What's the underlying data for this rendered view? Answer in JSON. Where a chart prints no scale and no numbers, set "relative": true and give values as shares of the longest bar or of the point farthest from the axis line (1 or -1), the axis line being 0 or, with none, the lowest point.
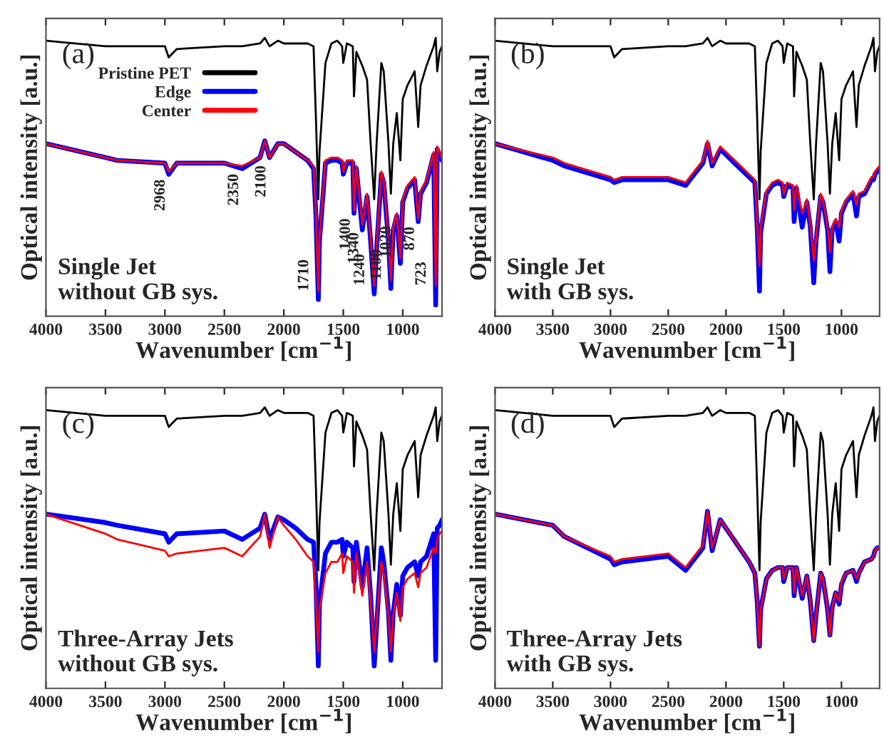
{
  "chart_data": [
    {
      "type": "line",
      "relative": true,
      "xlabel": "Wavenumber [cm$^{−1}$]",
      "ylabel": "Optical intensity [a.u.]",
      "xlim": [
        4000,
        670
      ],
      "xticks": [
        4000,
        3500,
        3000,
        2500,
        2000,
        1500,
        1000
      ],
      "legend": "top",
      "annotations": [
        "(a)",
        "Single Jet\nwithout GB sys.",
        {
          "text": "2968",
          "x": 2968,
          "y": 0.52
        },
        {
          "text": "2350",
          "x": 2350,
          "y": 0.54
        },
        {
          "text": "2100",
          "x": 2120,
          "y": 0.57
        },
        {
          "text": "1710",
          "x": 1710,
          "y": 0.09
        },
        {
          "text": "1400",
          "x": 1410,
          "y": 0.38
        },
        {
          "text": "1340",
          "x": 1340,
          "y": 0.33
        },
        {
          "text": "1240",
          "x": 1240,
          "y": 0.11
        },
        {
          "text": "1100",
          "x": 1100,
          "y": 0.13
        },
        {
          "text": "1020",
          "x": 1020,
          "y": 0.21
        },
        {
          "text": "870",
          "x": 870,
          "y": 0.35
        },
        {
          "text": "723",
          "x": 723,
          "y": 0.11
        }
      ],
      "x": [
        4000,
        3500,
        3400,
        3000,
        2968,
        2900,
        2500,
        2350,
        2200,
        2160,
        2120,
        2050,
        2000,
        1900,
        1800,
        1750,
        1730,
        1710,
        1700,
        1650,
        1600,
        1550,
        1510,
        1500,
        1470,
        1420,
        1410,
        1390,
        1340,
        1300,
        1270,
        1240,
        1220,
        1180,
        1160,
        1120,
        1100,
        1080,
        1050,
        1020,
        1000,
        960,
        900,
        870,
        850,
        800,
        740,
        723,
        710,
        690,
        670
      ],
      "series": [
        {
          "name": "Pristine PET",
          "color": "#000000",
          "values": [
            0.99,
            0.97,
            0.97,
            0.97,
            0.93,
            0.96,
            0.97,
            0.97,
            0.98,
            1.0,
            0.97,
            0.99,
            0.98,
            0.98,
            0.98,
            0.97,
            0.71,
            0.42,
            0.59,
            0.91,
            0.98,
            0.99,
            0.97,
            0.91,
            0.98,
            0.97,
            0.79,
            0.95,
            0.9,
            0.85,
            0.62,
            0.42,
            0.62,
            0.91,
            0.88,
            0.62,
            0.44,
            0.62,
            0.73,
            0.56,
            0.78,
            0.83,
            0.88,
            0.68,
            0.83,
            0.9,
            0.97,
            1.0,
            0.88,
            0.95,
            0.97
          ]
        },
        {
          "name": "Edge",
          "color": "#0000ff",
          "values": [
            0.62,
            0.57,
            0.56,
            0.55,
            0.51,
            0.55,
            0.55,
            0.53,
            0.57,
            0.63,
            0.57,
            0.62,
            0.62,
            0.59,
            0.56,
            0.53,
            0.36,
            0.06,
            0.27,
            0.55,
            0.56,
            0.56,
            0.55,
            0.51,
            0.55,
            0.55,
            0.37,
            0.53,
            0.31,
            0.43,
            0.27,
            0.08,
            0.24,
            0.51,
            0.48,
            0.27,
            0.1,
            0.31,
            0.36,
            0.19,
            0.41,
            0.46,
            0.49,
            0.34,
            0.44,
            0.48,
            0.58,
            0.04,
            0.6,
            0.58,
            0.56
          ]
        },
        {
          "name": "Center",
          "color": "#ff0000",
          "values": [
            0.62,
            0.57,
            0.56,
            0.55,
            0.52,
            0.55,
            0.55,
            0.54,
            0.57,
            0.63,
            0.57,
            0.62,
            0.62,
            0.59,
            0.56,
            0.54,
            0.37,
            0.09,
            0.28,
            0.56,
            0.57,
            0.57,
            0.56,
            0.52,
            0.56,
            0.56,
            0.38,
            0.54,
            0.33,
            0.44,
            0.28,
            0.11,
            0.25,
            0.52,
            0.49,
            0.28,
            0.13,
            0.32,
            0.37,
            0.21,
            0.42,
            0.47,
            0.5,
            0.35,
            0.45,
            0.49,
            0.59,
            0.11,
            0.61,
            0.59,
            0.57
          ]
        }
      ]
    },
    {
      "type": "line",
      "relative": true,
      "xlabel": "Wavenumber [cm$^{−1}$]",
      "ylabel": "Optical intensity [a.u.]",
      "xlim": [
        4000,
        670
      ],
      "xticks": [
        4000,
        3500,
        3000,
        2500,
        2000,
        1500,
        1000
      ],
      "annotations": [
        "(b)",
        "Single Jet\nwith GB sys."
      ],
      "x": [
        4000,
        3500,
        3400,
        3000,
        2968,
        2900,
        2500,
        2350,
        2200,
        2160,
        2120,
        2050,
        2000,
        1900,
        1800,
        1750,
        1730,
        1710,
        1700,
        1650,
        1600,
        1550,
        1510,
        1500,
        1470,
        1420,
        1410,
        1390,
        1340,
        1300,
        1270,
        1240,
        1220,
        1180,
        1160,
        1120,
        1100,
        1080,
        1050,
        1020,
        1000,
        960,
        900,
        870,
        850,
        800,
        740,
        723,
        710,
        690,
        670
      ],
      "series": [
        {
          "color": "#000000",
          "values": [
            0.99,
            0.97,
            0.97,
            0.97,
            0.93,
            0.96,
            0.97,
            0.97,
            0.98,
            1.0,
            0.97,
            0.99,
            0.98,
            0.98,
            0.98,
            0.97,
            0.71,
            0.42,
            0.59,
            0.91,
            0.98,
            0.99,
            0.97,
            0.91,
            0.98,
            0.97,
            0.79,
            0.95,
            0.9,
            0.85,
            0.62,
            0.42,
            0.62,
            0.91,
            0.88,
            0.62,
            0.44,
            0.62,
            0.73,
            0.56,
            0.78,
            0.83,
            0.88,
            0.68,
            0.83,
            0.9,
            0.97,
            1.0,
            0.88,
            0.95,
            0.97
          ]
        },
        {
          "color": "#0000ff",
          "values": [
            0.62,
            0.56,
            0.54,
            0.49,
            0.48,
            0.49,
            0.49,
            0.47,
            0.55,
            0.62,
            0.54,
            0.6,
            0.58,
            0.54,
            0.5,
            0.48,
            0.32,
            0.09,
            0.3,
            0.44,
            0.47,
            0.48,
            0.47,
            0.43,
            0.47,
            0.46,
            0.34,
            0.46,
            0.32,
            0.41,
            0.32,
            0.12,
            0.27,
            0.43,
            0.41,
            0.31,
            0.16,
            0.31,
            0.34,
            0.27,
            0.37,
            0.41,
            0.44,
            0.36,
            0.43,
            0.44,
            0.49,
            0.49,
            0.51,
            0.52,
            0.53
          ]
        },
        {
          "color": "#ff0000",
          "values": [
            0.62,
            0.57,
            0.55,
            0.5,
            0.49,
            0.5,
            0.5,
            0.48,
            0.56,
            0.63,
            0.55,
            0.61,
            0.59,
            0.55,
            0.51,
            0.49,
            0.33,
            0.18,
            0.32,
            0.45,
            0.48,
            0.49,
            0.48,
            0.44,
            0.48,
            0.47,
            0.38,
            0.47,
            0.37,
            0.42,
            0.33,
            0.2,
            0.28,
            0.44,
            0.42,
            0.32,
            0.23,
            0.32,
            0.35,
            0.32,
            0.38,
            0.42,
            0.45,
            0.4,
            0.44,
            0.45,
            0.5,
            0.5,
            0.52,
            0.53,
            0.54
          ]
        }
      ]
    },
    {
      "type": "line",
      "relative": true,
      "xlabel": "Wavenumber [cm$^{−1}$]",
      "ylabel": "Optical intensity [a.u.]",
      "xlim": [
        4000,
        670
      ],
      "xticks": [
        4000,
        3500,
        3000,
        2500,
        2000,
        1500,
        1000
      ],
      "annotations": [
        "(c)",
        "Three-Array Jets\nwithout GB sys."
      ],
      "x": [
        4000,
        3500,
        3400,
        3000,
        2968,
        2900,
        2500,
        2350,
        2200,
        2160,
        2120,
        2050,
        2000,
        1900,
        1800,
        1750,
        1730,
        1710,
        1700,
        1650,
        1600,
        1550,
        1510,
        1500,
        1470,
        1420,
        1410,
        1390,
        1340,
        1300,
        1270,
        1240,
        1220,
        1180,
        1160,
        1120,
        1100,
        1080,
        1050,
        1020,
        1000,
        960,
        900,
        870,
        850,
        800,
        740,
        723,
        710,
        690,
        670
      ],
      "series": [
        {
          "color": "#000000",
          "values": [
            0.99,
            0.97,
            0.97,
            0.97,
            0.93,
            0.96,
            0.97,
            0.97,
            0.98,
            1.0,
            0.97,
            0.99,
            0.98,
            0.98,
            0.98,
            0.97,
            0.71,
            0.42,
            0.59,
            0.91,
            0.98,
            0.99,
            0.97,
            0.91,
            0.98,
            0.97,
            0.79,
            0.95,
            0.9,
            0.85,
            0.62,
            0.42,
            0.62,
            0.91,
            0.88,
            0.62,
            0.44,
            0.62,
            0.73,
            0.56,
            0.78,
            0.83,
            0.88,
            0.68,
            0.83,
            0.9,
            0.97,
            1.0,
            0.88,
            0.95,
            0.97
          ]
        },
        {
          "color": "#0000ff",
          "values": [
            0.62,
            0.59,
            0.58,
            0.55,
            0.52,
            0.55,
            0.56,
            0.53,
            0.57,
            0.62,
            0.53,
            0.61,
            0.6,
            0.57,
            0.53,
            0.52,
            0.37,
            0.08,
            0.3,
            0.48,
            0.52,
            0.52,
            0.53,
            0.47,
            0.52,
            0.5,
            0.38,
            0.52,
            0.36,
            0.5,
            0.33,
            0.08,
            0.22,
            0.5,
            0.45,
            0.27,
            0.1,
            0.27,
            0.37,
            0.26,
            0.4,
            0.43,
            0.45,
            0.4,
            0.45,
            0.47,
            0.55,
            0.1,
            0.57,
            0.58,
            0.6
          ]
        },
        {
          "color": "#ff0000",
          "values": [
            0.62,
            0.55,
            0.53,
            0.49,
            0.47,
            0.48,
            0.5,
            0.47,
            0.54,
            0.62,
            0.5,
            0.61,
            0.58,
            0.53,
            0.47,
            0.45,
            0.31,
            0.13,
            0.28,
            0.41,
            0.45,
            0.45,
            0.48,
            0.41,
            0.47,
            0.45,
            0.34,
            0.48,
            0.33,
            0.45,
            0.31,
            0.13,
            0.24,
            0.45,
            0.41,
            0.26,
            0.13,
            0.26,
            0.34,
            0.24,
            0.36,
            0.39,
            0.41,
            0.36,
            0.41,
            0.43,
            0.5,
            0.48,
            0.53,
            0.55,
            0.56
          ]
        }
      ]
    },
    {
      "type": "line",
      "relative": true,
      "xlabel": "Wavenumber [cm$^{−1}$]",
      "ylabel": "Optical intensity [a.u.]",
      "xlim": [
        4000,
        670
      ],
      "xticks": [
        4000,
        3500,
        3000,
        2500,
        2000,
        1500,
        1000
      ],
      "annotations": [
        "(d)",
        "Three-Array Jets\nwith GB sys."
      ],
      "x": [
        4000,
        3500,
        3400,
        3000,
        2968,
        2900,
        2500,
        2350,
        2200,
        2160,
        2120,
        2050,
        2000,
        1900,
        1800,
        1750,
        1730,
        1710,
        1700,
        1650,
        1600,
        1550,
        1510,
        1500,
        1470,
        1420,
        1410,
        1390,
        1340,
        1300,
        1270,
        1240,
        1220,
        1180,
        1160,
        1120,
        1100,
        1080,
        1050,
        1020,
        1000,
        960,
        900,
        870,
        850,
        800,
        740,
        723,
        710,
        690,
        670
      ],
      "series": [
        {
          "color": "#000000",
          "values": [
            0.99,
            0.97,
            0.97,
            0.97,
            0.93,
            0.96,
            0.97,
            0.97,
            0.98,
            1.0,
            0.97,
            0.99,
            0.98,
            0.98,
            0.98,
            0.97,
            0.71,
            0.42,
            0.59,
            0.91,
            0.98,
            0.99,
            0.97,
            0.91,
            0.98,
            0.97,
            0.79,
            0.95,
            0.9,
            0.85,
            0.62,
            0.42,
            0.62,
            0.91,
            0.88,
            0.62,
            0.44,
            0.62,
            0.73,
            0.56,
            0.78,
            0.83,
            0.88,
            0.68,
            0.83,
            0.9,
            0.97,
            1.0,
            0.88,
            0.95,
            0.97
          ]
        },
        {
          "color": "#0000ff",
          "values": [
            0.62,
            0.58,
            0.54,
            0.46,
            0.44,
            0.45,
            0.47,
            0.42,
            0.5,
            0.63,
            0.49,
            0.6,
            0.57,
            0.51,
            0.45,
            0.41,
            0.31,
            0.15,
            0.28,
            0.39,
            0.42,
            0.43,
            0.43,
            0.38,
            0.43,
            0.43,
            0.33,
            0.43,
            0.32,
            0.4,
            0.31,
            0.17,
            0.26,
            0.41,
            0.39,
            0.28,
            0.19,
            0.29,
            0.34,
            0.3,
            0.37,
            0.41,
            0.42,
            0.38,
            0.41,
            0.45,
            0.46,
            0.47,
            0.49,
            0.5,
            0.5
          ]
        },
        {
          "color": "#ff0000",
          "values": [
            0.62,
            0.58,
            0.54,
            0.47,
            0.45,
            0.46,
            0.48,
            0.43,
            0.51,
            0.63,
            0.5,
            0.6,
            0.57,
            0.51,
            0.45,
            0.41,
            0.31,
            0.15,
            0.28,
            0.39,
            0.42,
            0.43,
            0.43,
            0.39,
            0.43,
            0.43,
            0.34,
            0.43,
            0.33,
            0.4,
            0.31,
            0.17,
            0.26,
            0.41,
            0.39,
            0.28,
            0.19,
            0.29,
            0.34,
            0.31,
            0.38,
            0.41,
            0.42,
            0.39,
            0.41,
            0.45,
            0.46,
            0.47,
            0.49,
            0.5,
            0.5
          ]
        }
      ]
    }
  ]
}
